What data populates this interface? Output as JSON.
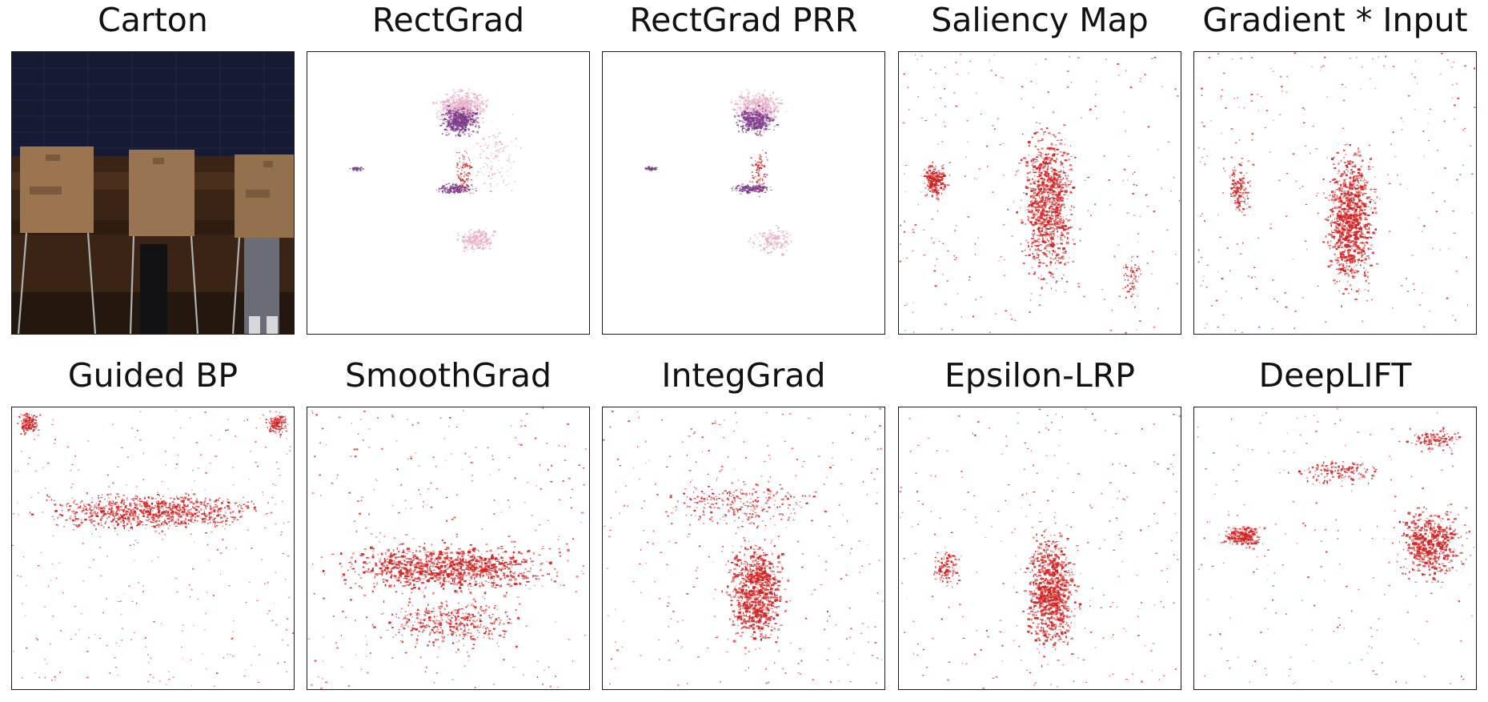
{
  "figure": {
    "panels": [
      {
        "title": "Carton",
        "kind": "photo"
      },
      {
        "title": "RectGrad",
        "kind": "rectgrad"
      },
      {
        "title": "RectGrad PRR",
        "kind": "rectgrad_prr"
      },
      {
        "title": "Saliency Map",
        "kind": "saliency"
      },
      {
        "title": "Gradient * Input",
        "kind": "grad_input"
      },
      {
        "title": "Guided BP",
        "kind": "guided_bp"
      },
      {
        "title": "SmoothGrad",
        "kind": "smoothgrad"
      },
      {
        "title": "IntegGrad",
        "kind": "integgrad"
      },
      {
        "title": "Epsilon-LRP",
        "kind": "epsilon_lrp"
      },
      {
        "title": "DeepLIFT",
        "kind": "deeplift"
      }
    ]
  },
  "colors": {
    "attribution_red": "#d42020",
    "attribution_purple": "#7a3a8a",
    "attribution_pink": "#e8b0c8",
    "frame": "#1a1a1a",
    "photo_wall": "#161a33",
    "photo_floor": "#3a2416",
    "photo_booth": "#9a7550"
  }
}
